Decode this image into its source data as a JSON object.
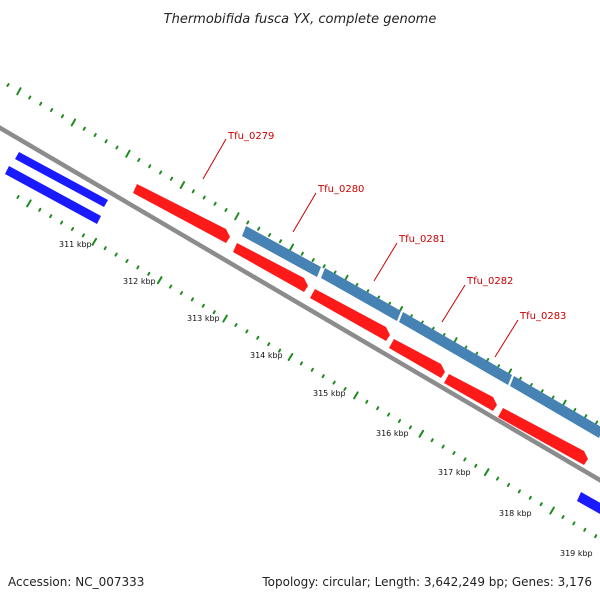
{
  "map": {
    "title": "Thermobifida fusca YX, complete genome",
    "accession": "Accession: NC_007333",
    "summary": "Topology: circular; Length: 3,642,249 bp; Genes: 3,176"
  },
  "colors": {
    "background": "#ffffff",
    "backbone": "#8c8c8c",
    "tick": "#1e8c1e",
    "forward_gene": "#1a1aff",
    "reverse_gene": "#ff1a1a",
    "highlight_gene": "#4682b4",
    "gene_label": "#cc0000",
    "leader_line": "#cc0000"
  },
  "scale_labels": [
    "311 kbp",
    "312 kbp",
    "313 kbp",
    "314 kbp",
    "315 kbp",
    "316 kbp",
    "317 kbp",
    "318 kbp",
    "319 kbp"
  ],
  "gene_labels": [
    "Tfu_0279",
    "Tfu_0280",
    "Tfu_0281",
    "Tfu_0282",
    "Tfu_0283"
  ]
}
